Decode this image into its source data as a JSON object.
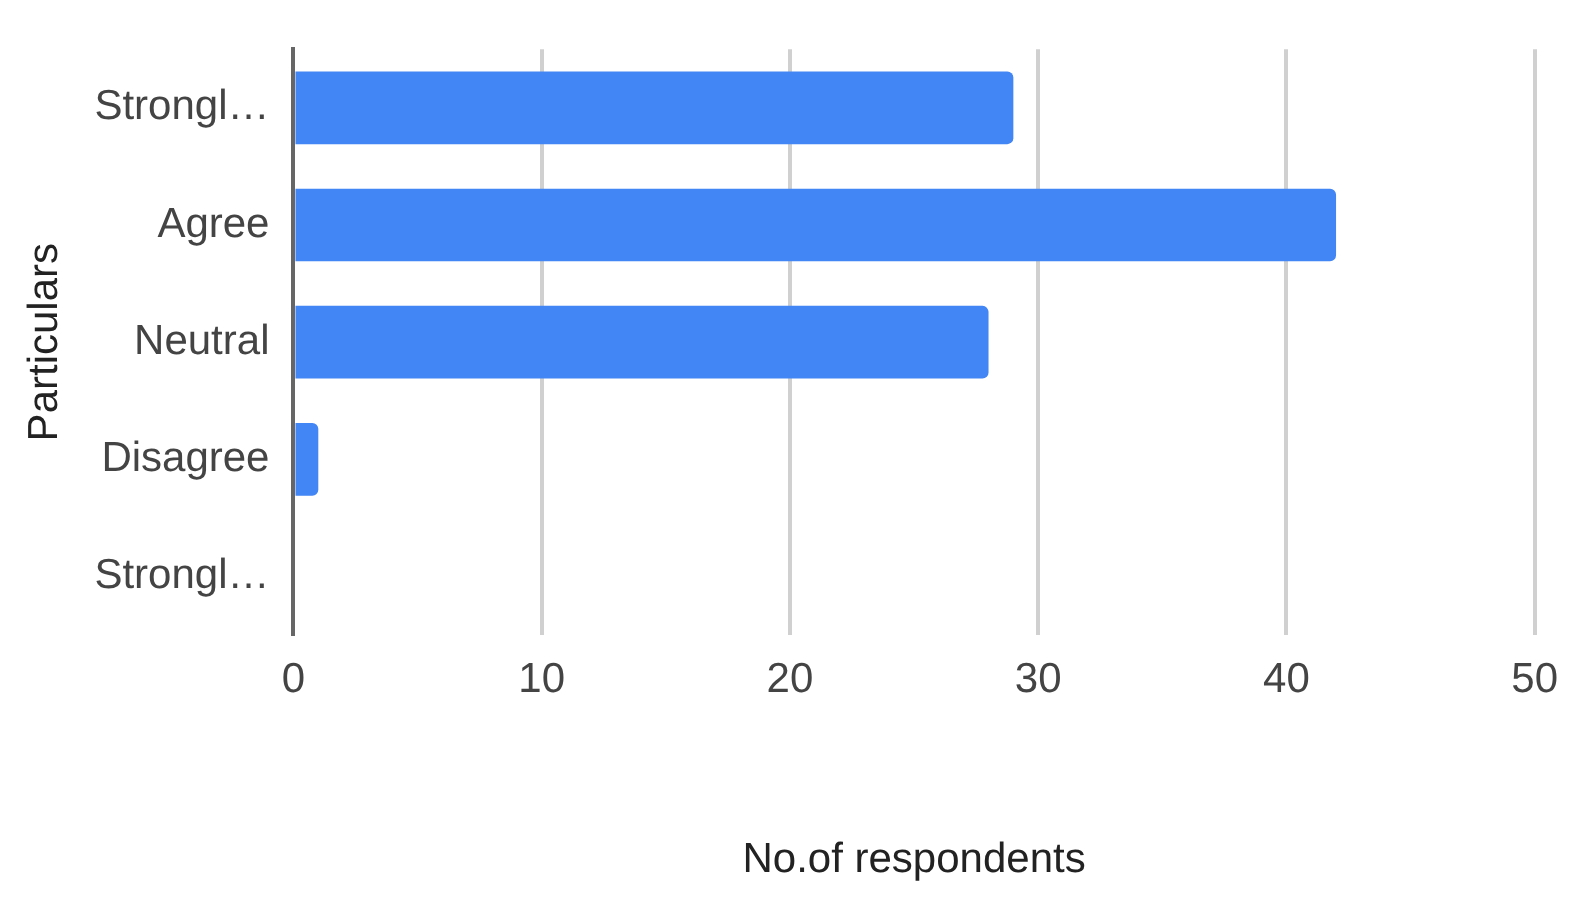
{
  "chart_data": {
    "type": "bar",
    "orientation": "horizontal",
    "categories": [
      "Strongl…",
      "Agree",
      "Neutral",
      "Disagree",
      "Strongl…"
    ],
    "values": [
      29,
      42,
      28,
      1,
      0
    ],
    "color": "#4285f4",
    "xlim": [
      0,
      50
    ],
    "xticks": [
      0,
      10,
      20,
      30,
      40,
      50
    ],
    "grid": "x",
    "legend": false,
    "xlabel": "No.of respondents",
    "ylabel": "Particulars"
  }
}
